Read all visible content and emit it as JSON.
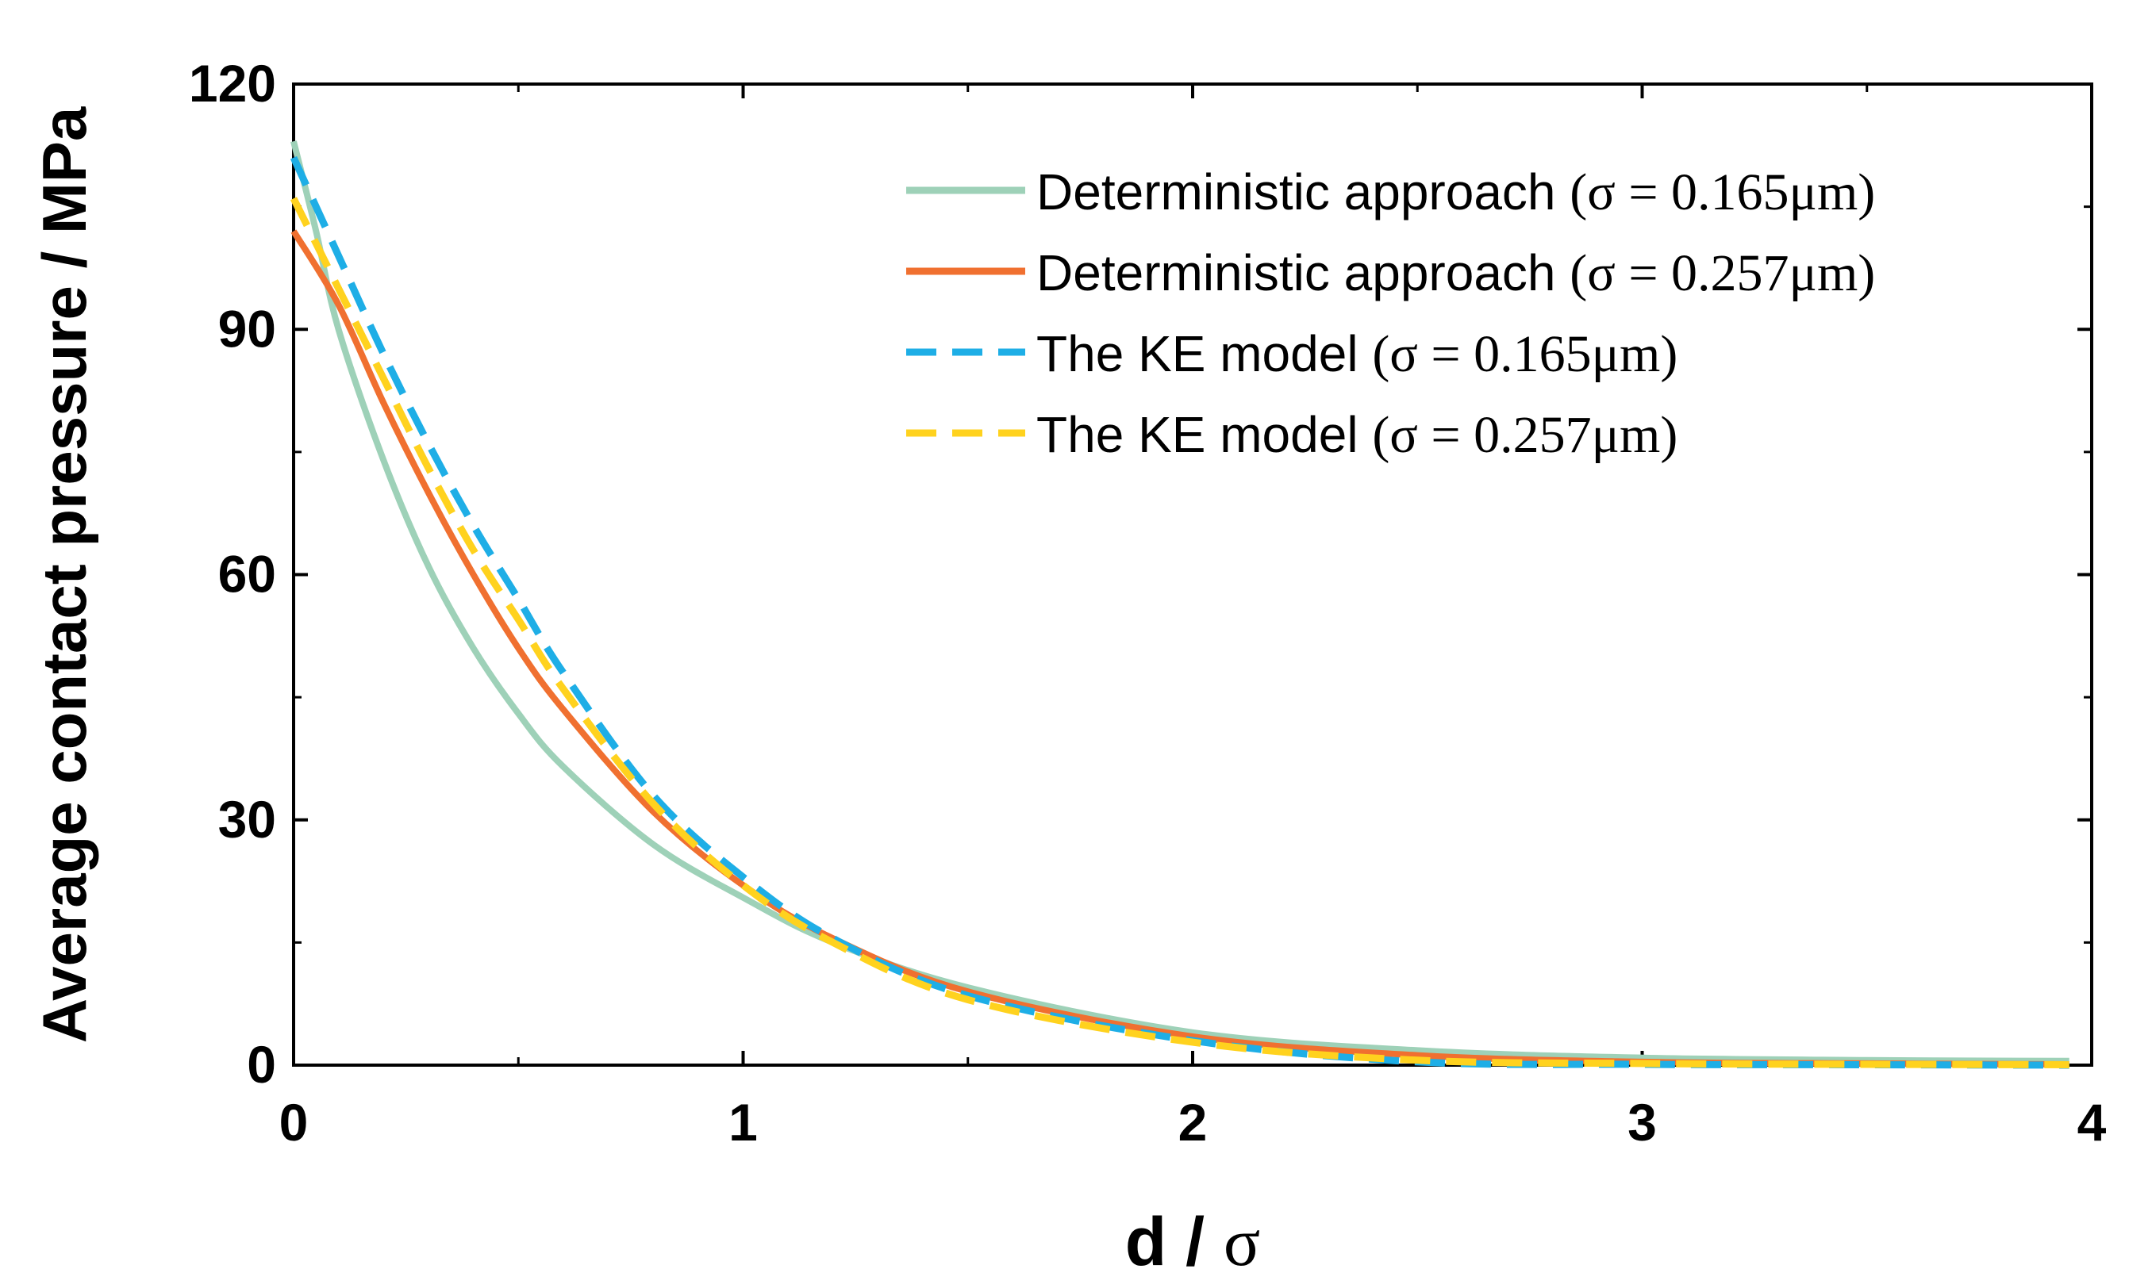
{
  "chart_data": {
    "type": "line",
    "title": "",
    "xlabel": "d / σ",
    "ylabel": "Average contact pressure / MPa",
    "xlim": [
      0,
      4
    ],
    "ylim": [
      0,
      120
    ],
    "xticks": [
      0,
      1,
      2,
      3,
      4
    ],
    "yticks": [
      0,
      30,
      60,
      90,
      120
    ],
    "xtick_labels": [
      "0",
      "1",
      "2",
      "3",
      "4"
    ],
    "ytick_labels": [
      "0",
      "30",
      "60",
      "90",
      "120"
    ],
    "grid": false,
    "legend_position": "top-right",
    "series": [
      {
        "name": "Deterministic approach",
        "param": "(σ = 0.165μm)",
        "color": "#9ed1b8",
        "style": "solid",
        "x": [
          0,
          0.05,
          0.1,
          0.2,
          0.3,
          0.4,
          0.5,
          0.6,
          0.8,
          1.0,
          1.2,
          1.5,
          2.0,
          2.5,
          3.0,
          3.5,
          3.95
        ],
        "y": [
          113,
          102,
          90,
          74,
          61,
          51,
          43,
          36.5,
          27,
          20.5,
          15,
          9.5,
          4,
          1.8,
          0.9,
          0.6,
          0.5
        ]
      },
      {
        "name": "Deterministic approach",
        "param": "(σ = 0.257μm)",
        "color": "#f07030",
        "style": "solid",
        "x": [
          0,
          0.1,
          0.2,
          0.3,
          0.4,
          0.5,
          0.6,
          0.8,
          1.0,
          1.2,
          1.5,
          2.0,
          2.5,
          3.0,
          3.5,
          3.95
        ],
        "y": [
          102,
          93,
          81,
          70,
          60,
          51,
          43.5,
          31,
          22,
          15.5,
          9,
          3.5,
          1.2,
          0.4,
          0.2,
          0.1
        ]
      },
      {
        "name": "The KE model",
        "param": "(σ = 0.165μm)",
        "color": "#1eaee6",
        "style": "dashed",
        "x": [
          0,
          0.1,
          0.2,
          0.3,
          0.4,
          0.5,
          0.6,
          0.8,
          1.0,
          1.2,
          1.5,
          2.0,
          2.5,
          3.0,
          3.5,
          3.95
        ],
        "y": [
          111,
          99,
          87,
          76,
          66,
          57,
          48,
          33,
          23,
          15.5,
          8.5,
          3,
          0.4,
          0.1,
          0.05,
          0
        ]
      },
      {
        "name": "The KE model",
        "param": "(σ = 0.257μm)",
        "color": "#ffd21e",
        "style": "dashed",
        "x": [
          0,
          0.1,
          0.2,
          0.3,
          0.4,
          0.5,
          0.6,
          0.8,
          1.0,
          1.2,
          1.5,
          2.0,
          2.5,
          3.0,
          3.5,
          3.95
        ],
        "y": [
          106,
          95,
          84,
          73,
          63,
          54.5,
          46,
          32,
          22,
          15,
          8,
          2.8,
          0.6,
          0.2,
          0.1,
          0.05
        ]
      }
    ]
  }
}
